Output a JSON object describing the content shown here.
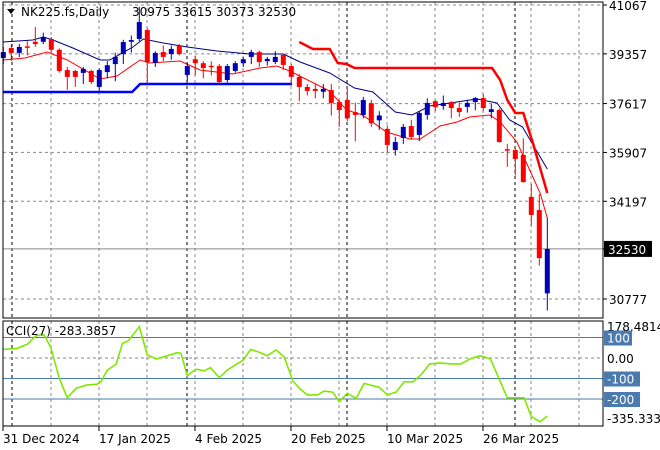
{
  "header": {
    "symbol": "NK225.fs,Daily",
    "ohlc": "30975 33615 30373 32530"
  },
  "colors": {
    "bull": "#0000B4",
    "bear": "#FF0000",
    "grid": "#8A8A8A",
    "separator": "#000000",
    "ma_fast": "#FF0000",
    "ma_slow": "#000080",
    "stop_upper": "#FF0000",
    "stop_lower": "#0000FF",
    "cci": "#7FE800",
    "cci_level": "#4A7AAE",
    "price_tag": "#000000"
  },
  "chart_data": [
    {
      "type": "candlestick",
      "title": "NK225.fs,Daily",
      "ylim": [
        30373,
        41067
      ],
      "y_ticks": [
        "41067",
        "39357",
        "37617",
        "35907",
        "34197",
        "32530",
        "30777"
      ],
      "current_price": "32530",
      "x_tick_labels": [
        "31 Dec 2024",
        "17 Jan 2025",
        "4 Feb 2025",
        "20 Feb 2025",
        "10 Mar 2025",
        "26 Mar 2025"
      ],
      "grid": true,
      "candles_ohlc": [
        [
          39210,
          39600,
          39000,
          39420
        ],
        [
          39560,
          39700,
          39100,
          39390
        ],
        [
          39390,
          39700,
          39250,
          39600
        ],
        [
          39620,
          39800,
          39300,
          39580
        ],
        [
          39780,
          40300,
          39600,
          39700
        ],
        [
          39780,
          40100,
          39700,
          39950
        ],
        [
          39880,
          39950,
          39400,
          39500
        ],
        [
          39500,
          39550,
          38700,
          38760
        ],
        [
          38790,
          38900,
          38100,
          38550
        ],
        [
          38760,
          38800,
          38200,
          38550
        ],
        [
          38690,
          38900,
          38300,
          38830
        ],
        [
          38760,
          38800,
          38300,
          38370
        ],
        [
          38200,
          38850,
          38000,
          38790
        ],
        [
          38720,
          39100,
          38500,
          38960
        ],
        [
          39000,
          39400,
          38400,
          39250
        ],
        [
          39350,
          39850,
          39000,
          39770
        ],
        [
          39780,
          40000,
          39400,
          39840
        ],
        [
          39880,
          41000,
          39800,
          40470
        ],
        [
          40190,
          40250,
          38300,
          39070
        ],
        [
          39040,
          39450,
          38900,
          39390
        ],
        [
          39420,
          39650,
          39100,
          39250
        ],
        [
          39350,
          39650,
          39150,
          39530
        ],
        [
          39630,
          39700,
          39300,
          39350
        ],
        [
          38620,
          39050,
          38400,
          38930
        ],
        [
          39170,
          39300,
          38600,
          39030
        ],
        [
          39030,
          39100,
          38500,
          38860
        ],
        [
          38940,
          39100,
          38600,
          38900
        ],
        [
          38930,
          39000,
          38300,
          38370
        ],
        [
          38440,
          39000,
          38350,
          38930
        ],
        [
          38760,
          39100,
          38700,
          39030
        ],
        [
          39030,
          39250,
          38900,
          39170
        ],
        [
          39250,
          39500,
          39000,
          39420
        ],
        [
          39420,
          39480,
          38900,
          39070
        ],
        [
          39100,
          39250,
          38950,
          39180
        ],
        [
          39070,
          39450,
          39000,
          39250
        ],
        [
          39320,
          39350,
          38800,
          38970
        ],
        [
          38930,
          39000,
          38300,
          38550
        ],
        [
          38550,
          38650,
          37700,
          38200
        ],
        [
          38200,
          38300,
          37900,
          38060
        ],
        [
          38130,
          38300,
          37800,
          38060
        ],
        [
          38030,
          38300,
          37800,
          38130
        ],
        [
          38090,
          38300,
          37200,
          37640
        ],
        [
          37670,
          37750,
          36800,
          37390
        ],
        [
          37740,
          38150,
          37000,
          37100
        ],
        [
          37320,
          37650,
          36300,
          37220
        ],
        [
          37220,
          37850,
          37100,
          37740
        ],
        [
          37630,
          37750,
          36800,
          36930
        ],
        [
          37030,
          37350,
          36700,
          37200
        ],
        [
          36730,
          36850,
          35900,
          36170
        ],
        [
          35990,
          36450,
          35800,
          36270
        ],
        [
          36410,
          36900,
          36200,
          36800
        ],
        [
          36830,
          37050,
          36350,
          36450
        ],
        [
          36520,
          37350,
          36300,
          37290
        ],
        [
          37220,
          37800,
          37050,
          37640
        ],
        [
          37700,
          37750,
          37350,
          37490
        ],
        [
          37530,
          37900,
          37400,
          37640
        ],
        [
          37670,
          37700,
          37100,
          37460
        ],
        [
          37460,
          37650,
          37150,
          37320
        ],
        [
          37500,
          37750,
          37300,
          37640
        ],
        [
          37670,
          37850,
          37380,
          37810
        ],
        [
          37810,
          37950,
          37350,
          37460
        ],
        [
          37320,
          37600,
          37100,
          37420
        ],
        [
          37390,
          37450,
          36250,
          36270
        ],
        [
          36020,
          36200,
          35400,
          35990
        ],
        [
          35990,
          36050,
          35100,
          35680
        ],
        [
          35820,
          36400,
          34850,
          34870
        ],
        [
          34350,
          34800,
          33350,
          33720
        ],
        [
          33890,
          34450,
          31950,
          32210
        ],
        [
          30975,
          33615,
          30373,
          32530
        ]
      ],
      "overlays": {
        "ma_fast": [
          [
            0,
            39142
          ],
          [
            2.7,
            39212
          ],
          [
            5.5,
            39422
          ],
          [
            8,
            39142
          ],
          [
            12.1,
            38477
          ],
          [
            14.2,
            38582
          ],
          [
            17.1,
            39142
          ],
          [
            18.3,
            39037
          ],
          [
            22.1,
            39107
          ],
          [
            24.6,
            38792
          ],
          [
            28.7,
            38652
          ],
          [
            32.1,
            38862
          ],
          [
            34.2,
            38932
          ],
          [
            35.8,
            38757
          ],
          [
            40.8,
            38057
          ],
          [
            42.9,
            37392
          ],
          [
            44.9,
            37217
          ],
          [
            47.9,
            36622
          ],
          [
            50.8,
            36377
          ],
          [
            52.1,
            36377
          ],
          [
            54.6,
            36832
          ],
          [
            56.7,
            36972
          ],
          [
            58.3,
            37147
          ],
          [
            60.8,
            37217
          ],
          [
            62.1,
            36972
          ],
          [
            64.2,
            36272
          ],
          [
            65.8,
            35292
          ],
          [
            67.1,
            34487
          ],
          [
            68,
            33612
          ]
        ],
        "ma_slow": [
          [
            0,
            39772
          ],
          [
            3.7,
            39842
          ],
          [
            5,
            39947
          ],
          [
            6.2,
            39842
          ],
          [
            8.7,
            39562
          ],
          [
            12.1,
            39142
          ],
          [
            13.3,
            39142
          ],
          [
            16.2,
            39597
          ],
          [
            17.5,
            39877
          ],
          [
            20,
            39737
          ],
          [
            23,
            39597
          ],
          [
            26.7,
            39457
          ],
          [
            30.8,
            39352
          ],
          [
            35,
            39352
          ],
          [
            37.1,
            39072
          ],
          [
            40.8,
            38687
          ],
          [
            43.9,
            38162
          ],
          [
            46.2,
            38022
          ],
          [
            49,
            37322
          ],
          [
            51.1,
            37217
          ],
          [
            53.3,
            37532
          ],
          [
            59.2,
            37777
          ],
          [
            61.7,
            37637
          ],
          [
            63.3,
            37042
          ],
          [
            64.9,
            36797
          ],
          [
            68,
            35327
          ]
        ],
        "stop_upper": [
          [
            37,
            39772
          ],
          [
            38.7,
            39527
          ],
          [
            40.8,
            39527
          ],
          [
            41.8,
            39037
          ],
          [
            42.9,
            39002
          ],
          [
            43.9,
            38862
          ],
          [
            61.1,
            38862
          ],
          [
            62.1,
            38442
          ],
          [
            63,
            37742
          ],
          [
            64,
            37287
          ],
          [
            65,
            37287
          ],
          [
            66.2,
            36237
          ],
          [
            68,
            34487
          ]
        ],
        "stop_lower": [
          [
            0,
            38022
          ],
          [
            16.1,
            38022
          ],
          [
            17.1,
            38302
          ],
          [
            36.1,
            38302
          ]
        ]
      }
    },
    {
      "type": "line",
      "title": "CCI(27) -283.3857",
      "ylim": [
        -335.3339,
        178.4814
      ],
      "y_ticks": [
        "178.4814",
        "100",
        "0.00",
        "-100",
        "-200",
        "-335.3339"
      ],
      "levels": [
        100,
        0,
        -100,
        -200
      ],
      "series": [
        {
          "values": [
            [
              0,
              42
            ],
            [
              1.7,
              47
            ],
            [
              3,
              67
            ],
            [
              4.1,
              109
            ],
            [
              5.1,
              112
            ],
            [
              5.9,
              55
            ],
            [
              7,
              -99
            ],
            [
              8,
              -194
            ],
            [
              9.1,
              -148
            ],
            [
              10.4,
              -132
            ],
            [
              11.7,
              -128
            ],
            [
              12.2,
              -116
            ],
            [
              13,
              -59
            ],
            [
              14.1,
              -31
            ],
            [
              14.9,
              72
            ],
            [
              15.6,
              83
            ],
            [
              17,
              153
            ],
            [
              18,
              15
            ],
            [
              19.1,
              -5
            ],
            [
              20.1,
              6
            ],
            [
              21.7,
              26
            ],
            [
              22.2,
              23
            ],
            [
              23,
              -86
            ],
            [
              24.1,
              -54
            ],
            [
              25.1,
              -63
            ],
            [
              25.9,
              -47
            ],
            [
              27,
              -96
            ],
            [
              28,
              -59
            ],
            [
              29.1,
              -31
            ],
            [
              30,
              -10
            ],
            [
              30.9,
              42
            ],
            [
              32,
              28
            ],
            [
              33,
              11
            ],
            [
              34.1,
              39
            ],
            [
              35.1,
              6
            ],
            [
              36.2,
              -112
            ],
            [
              37,
              -148
            ],
            [
              38,
              -180
            ],
            [
              39.3,
              -180
            ],
            [
              40.1,
              -161
            ],
            [
              41.2,
              -167
            ],
            [
              42,
              -213
            ],
            [
              43,
              -172
            ],
            [
              44.1,
              -197
            ],
            [
              45.1,
              -124
            ],
            [
              47,
              -143
            ],
            [
              48,
              -180
            ],
            [
              49.1,
              -167
            ],
            [
              50.1,
              -116
            ],
            [
              51.2,
              -116
            ],
            [
              52.2,
              -83
            ],
            [
              53.3,
              -29
            ],
            [
              54.6,
              -24
            ],
            [
              55.9,
              -29
            ],
            [
              57.2,
              -29
            ],
            [
              58.3,
              -5
            ],
            [
              59.6,
              11
            ],
            [
              60.9,
              -5
            ],
            [
              63,
              -194
            ],
            [
              65.1,
              -194
            ],
            [
              66,
              -286
            ],
            [
              67.1,
              -311
            ],
            [
              68,
              -283
            ]
          ]
        }
      ]
    }
  ]
}
